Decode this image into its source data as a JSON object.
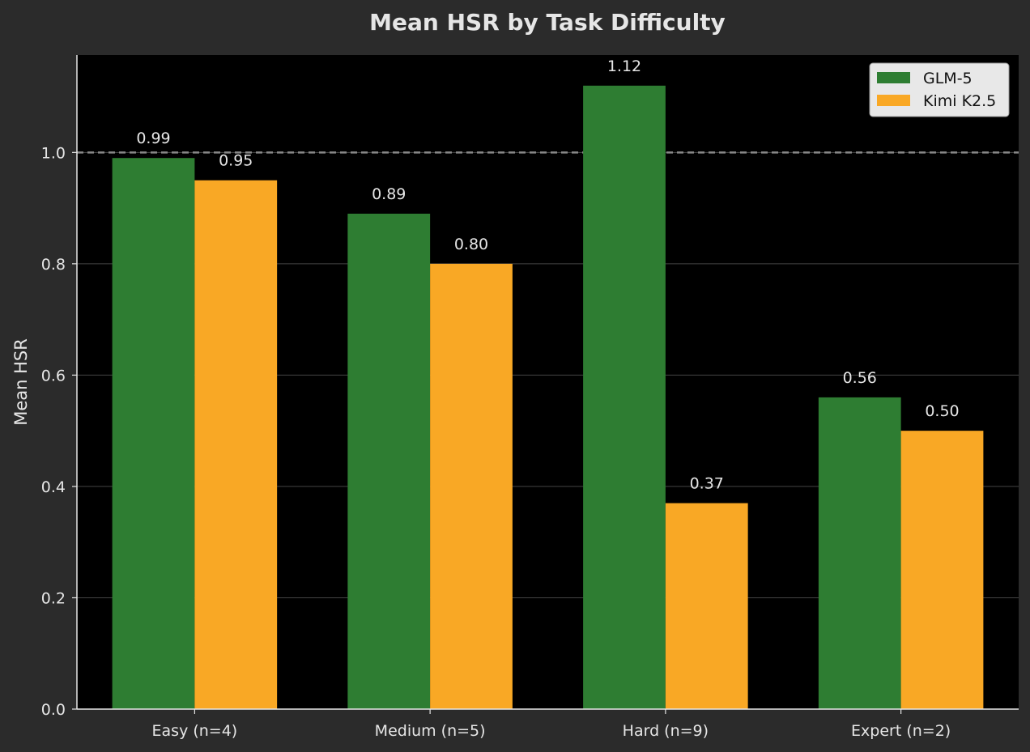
{
  "chart_data": {
    "type": "bar",
    "title": "Mean HSR by Task Difficulty",
    "xlabel": "",
    "ylabel": "Mean HSR",
    "categories": [
      "Easy (n=4)",
      "Medium (n=5)",
      "Hard (n=9)",
      "Expert (n=2)"
    ],
    "series": [
      {
        "name": "GLM-5",
        "color": "#2e7d32",
        "values": [
          0.99,
          0.89,
          1.12,
          0.56
        ]
      },
      {
        "name": "Kimi K2.5",
        "color": "#f9a825",
        "values": [
          0.95,
          0.8,
          0.37,
          0.5
        ]
      }
    ],
    "data_labels": [
      [
        "0.99",
        "0.89",
        "1.12",
        "0.56"
      ],
      [
        "0.95",
        "0.80",
        "0.37",
        "0.50"
      ]
    ],
    "yticks": [
      0.0,
      0.2,
      0.4,
      0.6,
      0.8,
      1.0
    ],
    "ytick_labels": [
      "0.0",
      "0.2",
      "0.4",
      "0.6",
      "0.8",
      "1.0"
    ],
    "ylim": [
      0,
      1.175
    ],
    "reference_line": {
      "y": 1.0,
      "style": "dashed",
      "color": "#888888"
    },
    "grid": "horizontal",
    "legend_position": "top-right",
    "colors": {
      "background": "#2b2b2b",
      "plot_background": "#000000",
      "text": "#e6e6e6",
      "grid": "#444444"
    }
  }
}
